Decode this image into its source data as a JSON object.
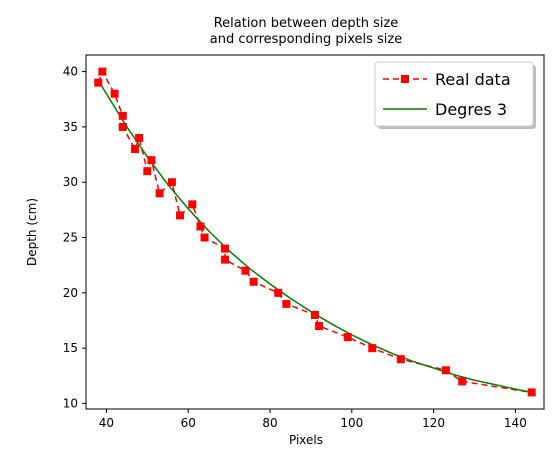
{
  "chart_data": {
    "type": "line",
    "title_line1": "Relation between depth size",
    "title_line2": "and corresponding  pixels size",
    "xlabel": "Pixels",
    "ylabel": "Depth (cm)",
    "xlim": [
      35,
      147
    ],
    "ylim": [
      9.5,
      41.5
    ],
    "xticks": [
      40,
      60,
      80,
      100,
      120,
      140
    ],
    "yticks": [
      10,
      15,
      20,
      25,
      30,
      35,
      40
    ],
    "grid": false,
    "legend_position": "top-right",
    "colors": {
      "real": "#ff0000",
      "fit": "#008000"
    },
    "series": [
      {
        "name": "Real data",
        "style": "dashed-line-square-markers",
        "x": [
          38,
          39,
          42,
          44,
          44,
          47,
          48,
          50,
          51,
          53,
          56,
          58,
          61,
          63,
          64,
          69,
          69,
          74,
          76,
          82,
          84,
          91,
          92,
          99,
          105,
          112,
          123,
          127,
          144
        ],
        "y": [
          39,
          40,
          38,
          36,
          35,
          33,
          34,
          31,
          32,
          29,
          30,
          27,
          28,
          26,
          25,
          24,
          23,
          22,
          21,
          20,
          19,
          18,
          17,
          16,
          15,
          14,
          13,
          12,
          11
        ]
      },
      {
        "name": "Degres 3",
        "style": "solid-line",
        "x": [
          38,
          40,
          45,
          50,
          55,
          60,
          65,
          70,
          75,
          80,
          85,
          90,
          95,
          100,
          105,
          110,
          115,
          120,
          125,
          130,
          135,
          140,
          144
        ],
        "y": [
          39.2,
          38.0,
          35.0,
          32.3,
          29.8,
          27.6,
          25.6,
          23.8,
          22.2,
          20.8,
          19.5,
          18.3,
          17.2,
          16.2,
          15.3,
          14.5,
          13.8,
          13.2,
          12.6,
          12.1,
          11.7,
          11.3,
          11.0
        ]
      }
    ]
  }
}
